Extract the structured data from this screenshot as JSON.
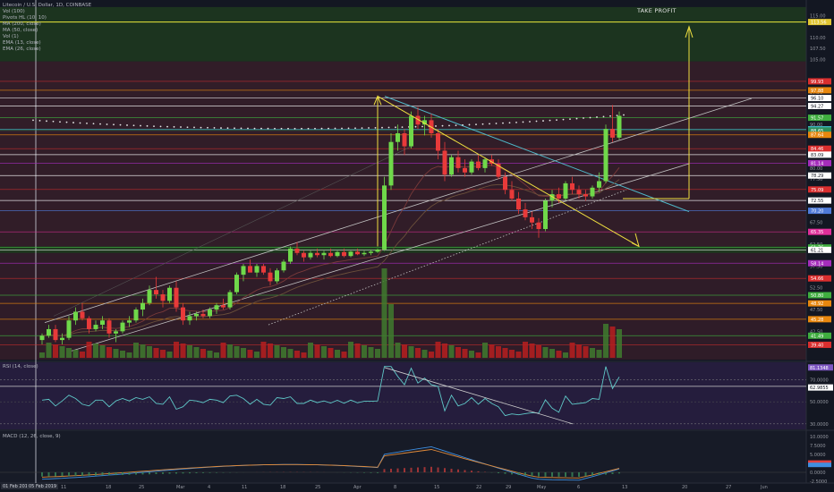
{
  "header": {
    "symbol": "Litecoin / U.S. Dollar, 1D, COINBASE",
    "indicators": [
      "Vol (100)",
      "Pivots HL (10, 10)",
      "MA (200, close)",
      "MA (50, close)",
      "Vol (1)",
      "EMA (13, close)",
      "EMA (26, close)"
    ]
  },
  "annotations": {
    "take_profit": "TAKE PROFIT"
  },
  "price_axis": {
    "ticks": [
      "115.00",
      "110.00",
      "107.50",
      "105.00",
      "100.00",
      "97.50",
      "90.00",
      "87.50",
      "80.00",
      "77.50",
      "72.50",
      "67.50",
      "62.50",
      "57.50",
      "52.50",
      "47.50",
      "45.00",
      "42.50"
    ],
    "badges": [
      {
        "v": "113.56",
        "c": "#e0c532"
      },
      {
        "v": "99.93",
        "c": "#d92e2e"
      },
      {
        "v": "97.88",
        "c": "#e8870e"
      },
      {
        "v": "96.10",
        "c": "#ffffff"
      },
      {
        "v": "94.27",
        "c": "#ffffff"
      },
      {
        "v": "91.57",
        "c": "#3fae3f"
      },
      {
        "v": "88.92",
        "c": "#3db3c2"
      },
      {
        "v": "88.65",
        "c": "#2f8f5b"
      },
      {
        "v": "87.64",
        "c": "#e8870e"
      },
      {
        "v": "84.46",
        "c": "#d92e2e"
      },
      {
        "v": "83.09",
        "c": "#ffffff"
      },
      {
        "v": "81.14",
        "c": "#a52dbb"
      },
      {
        "v": "78.29",
        "c": "#ffffff"
      },
      {
        "v": "75.09",
        "c": "#d92e2e"
      },
      {
        "v": "72.55",
        "c": "#ffffff"
      },
      {
        "v": "70.20",
        "c": "#4f7bd9"
      },
      {
        "v": "65.35",
        "c": "#e02f9a"
      },
      {
        "v": "61.76",
        "c": "#3fae3f"
      },
      {
        "v": "61.21",
        "c": "#ffffff"
      },
      {
        "v": "58.14",
        "c": "#a52dbb"
      },
      {
        "v": "54.66",
        "c": "#d92e2e"
      },
      {
        "v": "50.80",
        "c": "#3fae3f"
      },
      {
        "v": "48.92",
        "c": "#e8870e"
      },
      {
        "v": "45.28",
        "c": "#e8870e"
      },
      {
        "v": "41.49",
        "c": "#3fae3f"
      },
      {
        "v": "39.40",
        "c": "#d92e2e"
      }
    ]
  },
  "rsi": {
    "title": "RSI (14, close)",
    "ticks": [
      "70.0000",
      "50.0000",
      "30.0000"
    ],
    "badges": [
      {
        "v": "81.1348",
        "c": "#7e57c2"
      },
      {
        "v": "62.9855",
        "c": "#ffffff"
      }
    ]
  },
  "macd": {
    "title": "MACD (12, 26, close, 9)",
    "ticks": [
      "10.0000",
      "7.5000",
      "5.0000",
      "2.5000",
      "0.0000",
      "-2.5000"
    ],
    "badges": [
      {
        "v": "",
        "c": "#e04040"
      },
      {
        "v": "",
        "c": "#3e8ee0"
      }
    ]
  },
  "x_axis": {
    "flags": [
      "01 Feb 2019",
      "05 Feb 2019"
    ],
    "ticks": [
      "11",
      "18",
      "25",
      "Mar",
      "4",
      "11",
      "18",
      "25",
      "Apr",
      "8",
      "15",
      "22",
      "29",
      "May",
      "6",
      "13",
      "20",
      "27",
      "Jun"
    ]
  },
  "chart_data": {
    "type": "candlestick",
    "title": "Litecoin / U.S. Dollar, 1D, COINBASE",
    "xlabel": "",
    "ylabel": "",
    "ylim": [
      36,
      118
    ],
    "candles": [
      [
        40.5,
        42,
        39.5,
        41.5
      ],
      [
        41.5,
        44,
        41,
        43
      ],
      [
        43,
        44,
        40,
        40.5
      ],
      [
        40.5,
        42,
        39.5,
        41
      ],
      [
        41,
        46,
        40.5,
        45
      ],
      [
        45,
        48,
        44,
        47
      ],
      [
        47,
        49,
        45,
        45.5
      ],
      [
        45.5,
        46,
        42,
        43
      ],
      [
        43,
        45,
        42.5,
        44
      ],
      [
        44,
        46,
        43,
        45
      ],
      [
        45,
        45.5,
        41,
        42
      ],
      [
        42,
        43,
        40,
        42.5
      ],
      [
        42.5,
        45,
        42,
        44.5
      ],
      [
        44.5,
        46,
        43.5,
        45
      ],
      [
        45,
        48,
        44.5,
        47.5
      ],
      [
        47.5,
        50,
        46,
        49
      ],
      [
        49,
        53,
        48.5,
        52
      ],
      [
        52,
        55,
        50,
        51
      ],
      [
        51,
        52,
        48,
        49.5
      ],
      [
        49.5,
        53,
        49,
        52.5
      ],
      [
        52.5,
        54,
        47,
        48
      ],
      [
        48,
        49,
        44,
        45
      ],
      [
        45,
        47,
        44,
        46
      ],
      [
        46,
        47,
        45,
        46.5
      ],
      [
        46.5,
        47.5,
        45.5,
        46
      ],
      [
        46,
        48,
        45.5,
        47.5
      ],
      [
        47.5,
        49,
        46.5,
        48.5
      ],
      [
        48.5,
        50,
        47.5,
        48
      ],
      [
        48,
        52,
        47.5,
        51.5
      ],
      [
        51.5,
        56,
        51,
        55.5
      ],
      [
        55.5,
        58,
        54,
        57.5
      ],
      [
        57.5,
        59,
        56,
        56
      ],
      [
        56,
        58,
        55,
        57.5
      ],
      [
        57.5,
        58,
        55.5,
        56
      ],
      [
        56,
        57,
        53,
        54
      ],
      [
        54,
        57,
        53.5,
        56.5
      ],
      [
        56.5,
        59,
        56,
        58.5
      ],
      [
        58.5,
        62,
        58,
        61.5
      ],
      [
        61.5,
        63,
        60,
        60.5
      ],
      [
        60.5,
        61,
        58.5,
        59.5
      ],
      [
        59.5,
        61,
        59,
        60.5
      ],
      [
        60.5,
        61.5,
        59.5,
        60
      ],
      [
        60,
        61,
        59,
        60.5
      ],
      [
        60.5,
        61.5,
        59.5,
        59.8
      ],
      [
        59.8,
        61,
        59.5,
        60.7
      ],
      [
        60.7,
        61.5,
        59.5,
        59.8
      ],
      [
        59.8,
        61,
        59.5,
        60.8
      ],
      [
        60.8,
        61.5,
        60,
        60.2
      ],
      [
        60.2,
        61,
        59.8,
        60.5
      ],
      [
        60.5,
        61.3,
        60,
        60.8
      ],
      [
        60.8,
        61.5,
        60.5,
        61.3
      ],
      [
        61.3,
        78,
        61,
        76
      ],
      [
        76,
        88,
        75,
        86
      ],
      [
        86,
        90,
        84,
        88
      ],
      [
        88,
        89,
        83,
        85
      ],
      [
        85,
        93,
        84.5,
        92
      ],
      [
        92,
        94,
        89,
        90
      ],
      [
        90,
        92,
        87.5,
        91
      ],
      [
        91,
        92.5,
        87,
        88
      ],
      [
        88,
        89,
        82,
        84
      ],
      [
        84,
        86,
        77,
        78.5
      ],
      [
        78.5,
        83,
        78,
        82.5
      ],
      [
        82.5,
        84,
        79,
        80
      ],
      [
        80,
        82,
        78,
        79
      ],
      [
        79,
        82,
        78.5,
        81.5
      ],
      [
        81.5,
        83,
        79.5,
        80
      ],
      [
        80,
        82.5,
        79,
        82
      ],
      [
        82,
        83,
        80.5,
        81
      ],
      [
        81,
        82,
        77.5,
        78
      ],
      [
        78,
        79,
        74,
        75
      ],
      [
        75,
        77,
        72.5,
        73
      ],
      [
        73,
        74.5,
        69.5,
        70.5
      ],
      [
        70.5,
        72,
        68,
        68.7
      ],
      [
        68.7,
        70,
        66,
        67.5
      ],
      [
        67.5,
        68.5,
        64,
        66
      ],
      [
        66,
        73,
        65.5,
        72.5
      ],
      [
        72.5,
        75,
        71,
        74
      ],
      [
        74,
        75.5,
        72,
        73
      ],
      [
        73,
        77,
        72.5,
        76.5
      ],
      [
        76.5,
        78,
        74,
        75
      ],
      [
        75,
        76,
        73,
        74
      ],
      [
        74,
        75,
        72.5,
        73.5
      ],
      [
        73.5,
        76,
        73,
        75.5
      ],
      [
        75.5,
        79,
        74.5,
        77
      ],
      [
        77,
        90,
        76.5,
        89
      ],
      [
        89,
        94.5,
        86,
        87
      ],
      [
        87,
        93,
        86.5,
        92
      ]
    ],
    "ma200": {
      "start": 3,
      "from": 45.5,
      "to": 49.2
    },
    "rsi_range": [
      25,
      85
    ],
    "macd_range": [
      -3,
      11
    ],
    "annotation": "TAKE PROFIT"
  }
}
